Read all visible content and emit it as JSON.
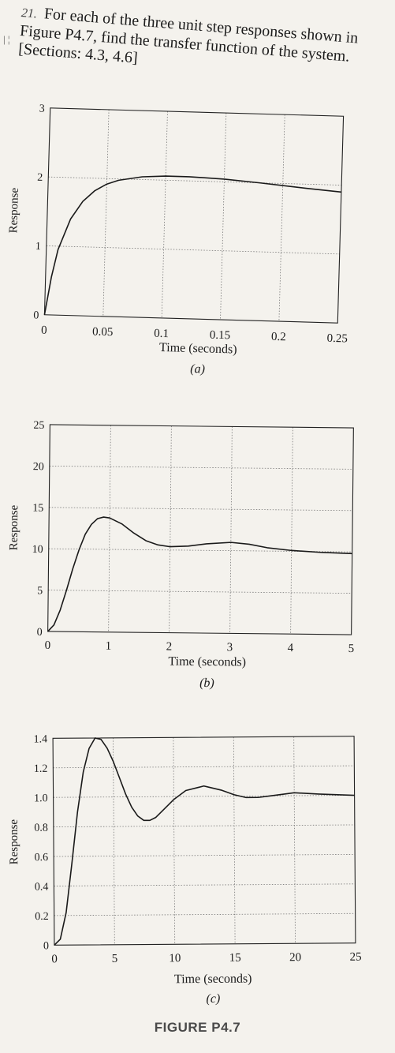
{
  "problem": {
    "number": "21.",
    "text": "For each of the three unit step responses shown in Figure P4.7, find the transfer function of the system. [Sections: 4.3, 4.6]"
  },
  "figure_label": "FIGURE P4.7",
  "chart_data": [
    {
      "type": "line",
      "panel": "(a)",
      "xlabel": "Time (seconds)",
      "ylabel": "Response",
      "xlim": [
        0,
        0.25
      ],
      "ylim": [
        0,
        3
      ],
      "xticks": [
        "0",
        "0.05",
        "0.1",
        "0.15",
        "0.2",
        "0.25"
      ],
      "yticks": [
        "0",
        "1",
        "2",
        "3"
      ],
      "grid": true,
      "series": [
        {
          "x": [
            0,
            0.005,
            0.01,
            0.02,
            0.03,
            0.04,
            0.05,
            0.06,
            0.08,
            0.1,
            0.12,
            0.15,
            0.18,
            0.2,
            0.22,
            0.25
          ],
          "y": [
            0,
            0.55,
            0.95,
            1.4,
            1.66,
            1.82,
            1.92,
            1.98,
            2.04,
            2.06,
            2.06,
            2.04,
            2.0,
            1.97,
            1.94,
            1.9
          ]
        }
      ]
    },
    {
      "type": "line",
      "panel": "(b)",
      "xlabel": "Time (seconds)",
      "ylabel": "Response",
      "xlim": [
        0,
        5
      ],
      "ylim": [
        0,
        25
      ],
      "xticks": [
        "0",
        "1",
        "2",
        "3",
        "4",
        "5"
      ],
      "yticks": [
        "0",
        "5",
        "10",
        "15",
        "20",
        "25"
      ],
      "grid": true,
      "series": [
        {
          "x": [
            0,
            0.1,
            0.2,
            0.3,
            0.4,
            0.5,
            0.6,
            0.7,
            0.8,
            0.9,
            1.0,
            1.2,
            1.4,
            1.6,
            1.8,
            2.0,
            2.3,
            2.6,
            3.0,
            3.3,
            3.6,
            4.0,
            4.5,
            5.0
          ],
          "y": [
            0,
            0.8,
            2.6,
            5.0,
            7.6,
            9.9,
            11.8,
            13.0,
            13.7,
            13.9,
            13.8,
            13.1,
            12.0,
            11.1,
            10.6,
            10.4,
            10.5,
            10.8,
            11.0,
            10.8,
            10.4,
            10.1,
            9.9,
            9.8
          ]
        }
      ]
    },
    {
      "type": "line",
      "panel": "(c)",
      "xlabel": "Time (seconds)",
      "ylabel": "Response",
      "xlim": [
        0,
        25
      ],
      "ylim": [
        0,
        1.4
      ],
      "xticks": [
        "0",
        "5",
        "10",
        "15",
        "20",
        "25"
      ],
      "yticks": [
        "0",
        "0.2",
        "0.4",
        "0.6",
        "0.8",
        "1.0",
        "1.2",
        "1.4"
      ],
      "grid": true,
      "series": [
        {
          "x": [
            0,
            0.5,
            1.0,
            1.5,
            2.0,
            2.5,
            3.0,
            3.5,
            4.0,
            4.5,
            5.0,
            5.5,
            6.0,
            6.5,
            7.0,
            7.5,
            8.0,
            8.5,
            9.0,
            10.0,
            11.0,
            12.0,
            12.5,
            13.0,
            14.0,
            15.0,
            16.0,
            17.0,
            18.0,
            19.0,
            20.0,
            22.0,
            25.0
          ],
          "y": [
            0,
            0.04,
            0.22,
            0.55,
            0.9,
            1.17,
            1.33,
            1.4,
            1.39,
            1.33,
            1.24,
            1.13,
            1.02,
            0.93,
            0.87,
            0.84,
            0.84,
            0.86,
            0.9,
            0.98,
            1.04,
            1.06,
            1.07,
            1.06,
            1.04,
            1.01,
            0.99,
            0.99,
            1.0,
            1.01,
            1.02,
            1.01,
            1.0
          ]
        }
      ]
    }
  ]
}
